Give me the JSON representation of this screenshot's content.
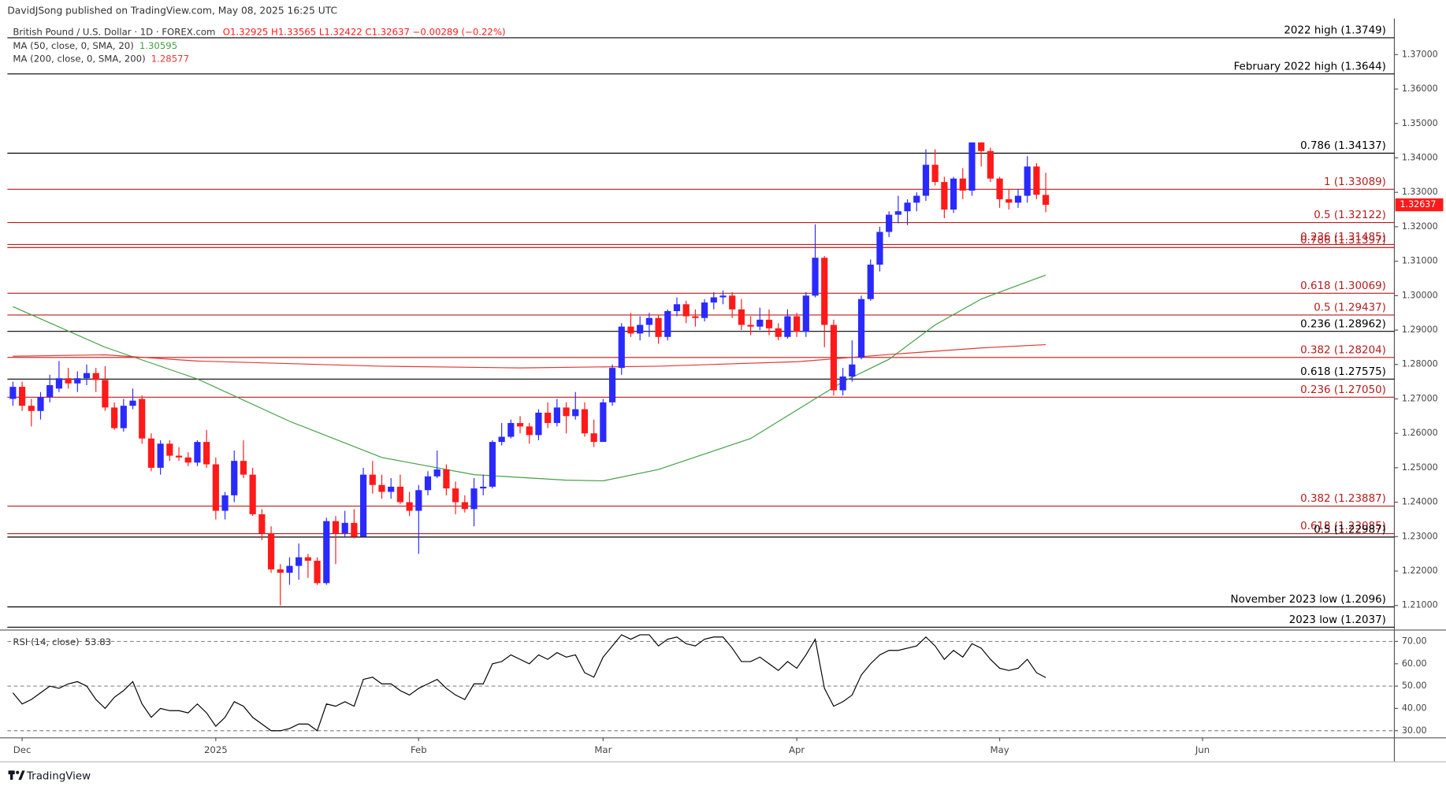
{
  "header": {
    "published": "DavidJSong published on TradingView.com, May 08, 2025 16:25 UTC"
  },
  "footer": {
    "brand": "TradingView"
  },
  "chart_data": [
    {
      "type": "candlestick",
      "title": "British Pound / U.S. Dollar · 1D · FOREX.com",
      "ohlc_label": "O1.32925  H1.33565  L1.32422  C1.32637  −0.00289 (−0.22%)",
      "up_color": "#2a2aff",
      "down_color": "#ff1a1a",
      "xlim": [
        -0.6,
        149.8
      ],
      "xticks": [
        {
          "value": 1,
          "label": "Dec"
        },
        {
          "value": 22,
          "label": "2025"
        },
        {
          "value": 44,
          "label": "Feb"
        },
        {
          "value": 64,
          "label": "Mar"
        },
        {
          "value": 85,
          "label": "Apr"
        },
        {
          "value": 107,
          "label": "May"
        },
        {
          "value": 129,
          "label": "Jun"
        }
      ],
      "ylim": [
        1.203,
        1.3805
      ],
      "yticks": [
        {
          "value": 1.21,
          "label": "1.21000"
        },
        {
          "value": 1.22,
          "label": "1.22000"
        },
        {
          "value": 1.23,
          "label": "1.23000"
        },
        {
          "value": 1.24,
          "label": "1.24000"
        },
        {
          "value": 1.25,
          "label": "1.25000"
        },
        {
          "value": 1.26,
          "label": "1.26000"
        },
        {
          "value": 1.27,
          "label": "1.27000"
        },
        {
          "value": 1.28,
          "label": "1.28000"
        },
        {
          "value": 1.29,
          "label": "1.29000"
        },
        {
          "value": 1.3,
          "label": "1.30000"
        },
        {
          "value": 1.31,
          "label": "1.31000"
        },
        {
          "value": 1.32,
          "label": "1.32000"
        },
        {
          "value": 1.33,
          "label": "1.33000"
        },
        {
          "value": 1.34,
          "label": "1.34000"
        },
        {
          "value": 1.35,
          "label": "1.35000"
        },
        {
          "value": 1.36,
          "label": "1.36000"
        },
        {
          "value": 1.37,
          "label": "1.37000"
        }
      ],
      "last_price": {
        "value": 1.32637,
        "label": "1.32637"
      },
      "levels": [
        {
          "value": 1.3749,
          "label": "2022 high (1.3749)",
          "color": "#000000"
        },
        {
          "value": 1.3644,
          "label": "February 2022 high (1.3644)",
          "color": "#000000"
        },
        {
          "value": 1.34137,
          "label": "0.786 (1.34137)",
          "color": "#000000"
        },
        {
          "value": 1.33089,
          "label": "1 (1.33089)",
          "color": "#b71c1c"
        },
        {
          "value": 1.32122,
          "label": "0.5 (1.32122)",
          "color": "#b71c1c"
        },
        {
          "value": 1.31485,
          "label": "0.236 (1.31485)",
          "color": "#b71c1c"
        },
        {
          "value": 1.31397,
          "label": "0.786 (1.31397)",
          "color": "#b71c1c"
        },
        {
          "value": 1.30069,
          "label": "0.618 (1.30069)",
          "color": "#b71c1c"
        },
        {
          "value": 1.29437,
          "label": "0.5 (1.29437)",
          "color": "#b71c1c"
        },
        {
          "value": 1.28962,
          "label": "0.236 (1.28962)",
          "color": "#000000"
        },
        {
          "value": 1.28204,
          "label": "0.382 (1.28204)",
          "color": "#b71c1c"
        },
        {
          "value": 1.27575,
          "label": "0.618 (1.27575)",
          "color": "#000000"
        },
        {
          "value": 1.2705,
          "label": "0.236 (1.27050)",
          "color": "#b71c1c"
        },
        {
          "value": 1.23887,
          "label": "0.382 (1.23887)",
          "color": "#b71c1c"
        },
        {
          "value": 1.23085,
          "label": "0.618 (1.23085)",
          "color": "#b71c1c"
        },
        {
          "value": 1.22987,
          "label": "0.5 (1.22987)",
          "color": "#000000"
        },
        {
          "value": 1.2096,
          "label": "November 2023 low (1.2096)",
          "color": "#000000"
        },
        {
          "value": 1.2037,
          "label": "2023 low (1.2037)",
          "color": "#000000"
        }
      ],
      "series": [
        {
          "name": "MA (50, close, 0, SMA, 20)",
          "value_label": "1.30595",
          "color": "#43a047",
          "x": [
            0,
            10,
            20,
            30,
            40,
            50,
            60,
            64,
            70,
            80,
            90,
            95,
            100,
            105,
            110,
            112
          ],
          "values": [
            1.2968,
            1.285,
            1.2758,
            1.2635,
            1.253,
            1.248,
            1.2464,
            1.2462,
            1.2495,
            1.2585,
            1.275,
            1.2815,
            1.2915,
            1.299,
            1.304,
            1.30595
          ]
        },
        {
          "name": "MA (200, close, 0, SMA, 200)",
          "value_label": "1.28577",
          "color": "#e53935",
          "x": [
            0,
            10,
            20,
            40,
            55,
            70,
            85,
            95,
            105,
            112
          ],
          "values": [
            1.2824,
            1.2828,
            1.281,
            1.2795,
            1.279,
            1.2795,
            1.2808,
            1.2829,
            1.2848,
            1.28577
          ]
        }
      ],
      "candles": [
        [
          1.27,
          1.275,
          1.268,
          1.2735
        ],
        [
          1.2735,
          1.275,
          1.2665,
          1.268
        ],
        [
          1.268,
          1.27,
          1.262,
          1.2665
        ],
        [
          1.2665,
          1.272,
          1.264,
          1.2705
        ],
        [
          1.2705,
          1.277,
          1.269,
          1.274
        ],
        [
          1.273,
          1.281,
          1.272,
          1.276
        ],
        [
          1.276,
          1.279,
          1.273,
          1.2745
        ],
        [
          1.2745,
          1.278,
          1.272,
          1.276
        ],
        [
          1.276,
          1.28,
          1.274,
          1.2775
        ],
        [
          1.2775,
          1.279,
          1.272,
          1.2755
        ],
        [
          1.2755,
          1.2795,
          1.2665,
          1.2675
        ],
        [
          1.2675,
          1.269,
          1.261,
          1.2615
        ],
        [
          1.2615,
          1.27,
          1.2605,
          1.268
        ],
        [
          1.268,
          1.273,
          1.267,
          1.2695
        ],
        [
          1.27,
          1.271,
          1.257,
          1.2585
        ],
        [
          1.2585,
          1.26,
          1.249,
          1.25
        ],
        [
          1.25,
          1.258,
          1.248,
          1.257
        ],
        [
          1.257,
          1.258,
          1.252,
          1.2535
        ],
        [
          1.2535,
          1.256,
          1.252,
          1.253
        ],
        [
          1.253,
          1.2545,
          1.2505,
          1.2515
        ],
        [
          1.2515,
          1.258,
          1.2505,
          1.2575
        ],
        [
          1.2575,
          1.261,
          1.25,
          1.251
        ],
        [
          1.251,
          1.253,
          1.235,
          1.2375
        ],
        [
          1.2375,
          1.243,
          1.235,
          1.242
        ],
        [
          1.242,
          1.255,
          1.24,
          1.252
        ],
        [
          1.252,
          1.258,
          1.247,
          1.248
        ],
        [
          1.248,
          1.25,
          1.236,
          1.2365
        ],
        [
          1.2365,
          1.238,
          1.229,
          1.231
        ],
        [
          1.231,
          1.233,
          1.2195,
          1.2205
        ],
        [
          1.2205,
          1.222,
          1.21,
          1.2195
        ],
        [
          1.2195,
          1.224,
          1.216,
          1.2215
        ],
        [
          1.2215,
          1.228,
          1.2175,
          1.224
        ],
        [
          1.224,
          1.225,
          1.218,
          1.223
        ],
        [
          1.223,
          1.224,
          1.216,
          1.2165
        ],
        [
          1.2165,
          1.2355,
          1.216,
          1.2345
        ],
        [
          1.2345,
          1.236,
          1.222,
          1.231
        ],
        [
          1.231,
          1.2375,
          1.23,
          1.234
        ],
        [
          1.234,
          1.238,
          1.2295,
          1.23
        ],
        [
          1.23,
          1.25,
          1.23,
          1.248
        ],
        [
          1.248,
          1.252,
          1.2425,
          1.245
        ],
        [
          1.245,
          1.248,
          1.241,
          1.243
        ],
        [
          1.243,
          1.247,
          1.241,
          1.2445
        ],
        [
          1.2445,
          1.248,
          1.2395,
          1.24
        ],
        [
          1.24,
          1.243,
          1.236,
          1.2375
        ],
        [
          1.2375,
          1.245,
          1.225,
          1.2435
        ],
        [
          1.2435,
          1.249,
          1.242,
          1.2475
        ],
        [
          1.2475,
          1.255,
          1.247,
          1.2495
        ],
        [
          1.2495,
          1.251,
          1.242,
          1.244
        ],
        [
          1.244,
          1.246,
          1.2365,
          1.24
        ],
        [
          1.24,
          1.242,
          1.237,
          1.238
        ],
        [
          1.238,
          1.247,
          1.233,
          1.244
        ],
        [
          1.244,
          1.248,
          1.242,
          1.2445
        ],
        [
          1.2445,
          1.258,
          1.244,
          1.2575
        ],
        [
          1.2575,
          1.263,
          1.2565,
          1.259
        ],
        [
          1.259,
          1.264,
          1.2585,
          1.263
        ],
        [
          1.263,
          1.265,
          1.26,
          1.262
        ],
        [
          1.262,
          1.263,
          1.257,
          1.2595
        ],
        [
          1.2595,
          1.267,
          1.258,
          1.266
        ],
        [
          1.266,
          1.269,
          1.2615,
          1.263
        ],
        [
          1.263,
          1.27,
          1.262,
          1.2675
        ],
        [
          1.2675,
          1.269,
          1.26,
          1.265
        ],
        [
          1.265,
          1.272,
          1.264,
          1.267
        ],
        [
          1.267,
          1.269,
          1.259,
          1.26
        ],
        [
          1.26,
          1.264,
          1.256,
          1.2575
        ],
        [
          1.2575,
          1.27,
          1.2575,
          1.269
        ],
        [
          1.269,
          1.28,
          1.268,
          1.279
        ],
        [
          1.279,
          1.292,
          1.277,
          1.291
        ],
        [
          1.291,
          1.295,
          1.288,
          1.289
        ],
        [
          1.289,
          1.294,
          1.287,
          1.2915
        ],
        [
          1.2915,
          1.295,
          1.288,
          1.2935
        ],
        [
          1.2935,
          1.2945,
          1.286,
          1.288
        ],
        [
          1.288,
          1.296,
          1.287,
          1.2955
        ],
        [
          1.2955,
          1.2995,
          1.294,
          1.2975
        ],
        [
          1.2975,
          1.2985,
          1.292,
          1.294
        ],
        [
          1.294,
          1.296,
          1.291,
          1.2935
        ],
        [
          1.2935,
          1.299,
          1.2925,
          1.298
        ],
        [
          1.298,
          1.301,
          1.296,
          1.2995
        ],
        [
          1.2995,
          1.3015,
          1.2975,
          1.3
        ],
        [
          1.3,
          1.301,
          1.2935,
          1.296
        ],
        [
          1.296,
          1.299,
          1.29,
          1.2915
        ],
        [
          1.2915,
          1.294,
          1.2885,
          1.291
        ],
        [
          1.291,
          1.2965,
          1.29,
          1.293
        ],
        [
          1.293,
          1.296,
          1.2885,
          1.2905
        ],
        [
          1.2905,
          1.292,
          1.287,
          1.288
        ],
        [
          1.288,
          1.296,
          1.2875,
          1.294
        ],
        [
          1.294,
          1.295,
          1.288,
          1.2895
        ],
        [
          1.2895,
          1.301,
          1.288,
          1.3
        ],
        [
          1.3,
          1.3207,
          1.2995,
          1.311
        ],
        [
          1.311,
          1.3115,
          1.285,
          1.2915
        ],
        [
          1.2915,
          1.293,
          1.271,
          1.2725
        ],
        [
          1.2725,
          1.279,
          1.271,
          1.2765
        ],
        [
          1.2765,
          1.287,
          1.275,
          1.28
        ],
        [
          1.282,
          1.3,
          1.2815,
          1.299
        ],
        [
          1.299,
          1.3105,
          1.2985,
          1.309
        ],
        [
          1.309,
          1.32,
          1.307,
          1.3185
        ],
        [
          1.3185,
          1.3245,
          1.317,
          1.3235
        ],
        [
          1.3235,
          1.329,
          1.321,
          1.3245
        ],
        [
          1.3245,
          1.328,
          1.3205,
          1.327
        ],
        [
          1.327,
          1.33,
          1.3245,
          1.329
        ],
        [
          1.329,
          1.3425,
          1.3275,
          1.338
        ],
        [
          1.338,
          1.3425,
          1.332,
          1.333
        ],
        [
          1.333,
          1.3345,
          1.3225,
          1.325
        ],
        [
          1.325,
          1.3345,
          1.324,
          1.334
        ],
        [
          1.334,
          1.337,
          1.328,
          1.3305
        ],
        [
          1.3305,
          1.3445,
          1.329,
          1.3445
        ],
        [
          1.3445,
          1.3445,
          1.3375,
          1.342
        ],
        [
          1.342,
          1.343,
          1.333,
          1.334
        ],
        [
          1.334,
          1.3345,
          1.3255,
          1.328
        ],
        [
          1.328,
          1.331,
          1.325,
          1.327
        ],
        [
          1.327,
          1.331,
          1.3255,
          1.329
        ],
        [
          1.329,
          1.3405,
          1.327,
          1.3375
        ],
        [
          1.3375,
          1.3385,
          1.328,
          1.3293
        ],
        [
          1.32925,
          1.33565,
          1.32422,
          1.32637
        ]
      ]
    },
    {
      "type": "line",
      "name": "RSI (14, close)",
      "value_label": "53.83",
      "color": "#000000",
      "ylim": [
        27,
        74.5
      ],
      "yticks": [
        {
          "value": 30,
          "label": "30.00"
        },
        {
          "value": 40,
          "label": "40.00"
        },
        {
          "value": 50,
          "label": "50.00"
        },
        {
          "value": 60,
          "label": "60.00"
        },
        {
          "value": 70,
          "label": "70.00"
        }
      ],
      "levels": [
        70,
        50,
        30
      ],
      "values": [
        47,
        42,
        44,
        47,
        50,
        49,
        51,
        52,
        50,
        44,
        40,
        45,
        48,
        52,
        42,
        36,
        40,
        39,
        39,
        38,
        42,
        38,
        32,
        36,
        43,
        41,
        36,
        33,
        30,
        30,
        31,
        33,
        33,
        30,
        42,
        41,
        43,
        41,
        53,
        54,
        51,
        51,
        48,
        46,
        49,
        51,
        53,
        49,
        46,
        44,
        51,
        51,
        60,
        61,
        64,
        62,
        60,
        64,
        62,
        65,
        63,
        64,
        56,
        54,
        63,
        68,
        73,
        71,
        73,
        73,
        68,
        71,
        72,
        69,
        68,
        71,
        72,
        72,
        67,
        61,
        61,
        63,
        60,
        57,
        61,
        58,
        64,
        71,
        49,
        41,
        43,
        46,
        55,
        60,
        64,
        66,
        66,
        67,
        68,
        72,
        68,
        62,
        66,
        63,
        69,
        67,
        62,
        58,
        57,
        58,
        62,
        56,
        53.83
      ]
    }
  ]
}
